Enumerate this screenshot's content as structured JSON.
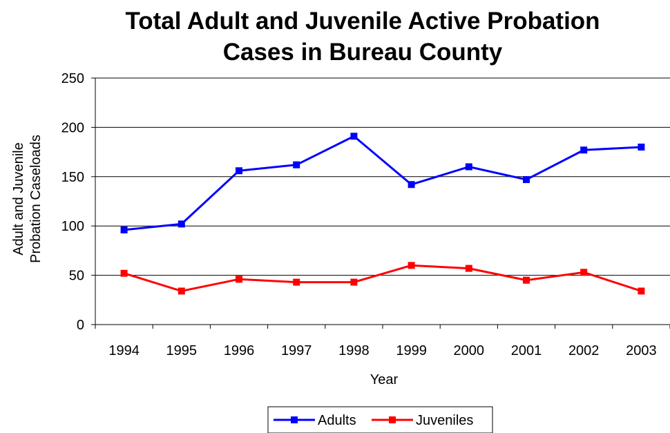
{
  "chart_data": {
    "type": "line",
    "title": [
      "Total Adult and Juvenile Active Probation",
      "Cases in Bureau County"
    ],
    "xlabel": "Year",
    "ylabel": [
      "Adult and Juvenile",
      "Probation Caseloads"
    ],
    "categories": [
      "1994",
      "1995",
      "1996",
      "1997",
      "1998",
      "1999",
      "2000",
      "2001",
      "2002",
      "2003"
    ],
    "ylim": [
      0,
      250
    ],
    "yticks": [
      "0",
      "50",
      "100",
      "150",
      "200",
      "250"
    ],
    "grid": true,
    "legend": "bottom",
    "series": [
      {
        "name": "Adults",
        "color": "#0000ff",
        "values": [
          96,
          102,
          156,
          162,
          191,
          142,
          160,
          147,
          177,
          180
        ]
      },
      {
        "name": "Juveniles",
        "color": "#ff0000",
        "values": [
          52,
          34,
          46,
          43,
          43,
          60,
          57,
          45,
          53,
          34
        ]
      }
    ]
  }
}
